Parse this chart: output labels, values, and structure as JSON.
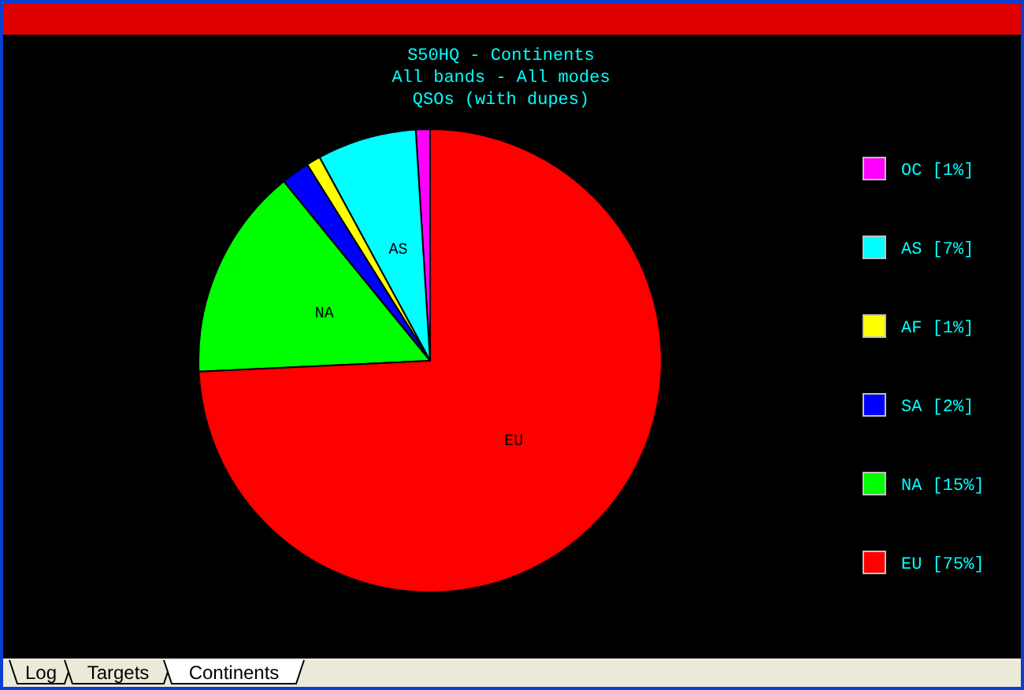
{
  "chart_data": {
    "type": "pie",
    "title": "S50HQ - Continents",
    "subtitle": "All bands - All modes\nQSOs (with dupes)",
    "categories": [
      "OC",
      "AS",
      "AF",
      "SA",
      "NA",
      "EU"
    ],
    "values": [
      1,
      7,
      1,
      2,
      15,
      75
    ],
    "value_labels": [
      "[1%]",
      "[7%]",
      "[1%]",
      "[2%]",
      "[15%]",
      "[75%]"
    ],
    "colors": [
      "#ff00ff",
      "#00ffff",
      "#ffff00",
      "#0000ff",
      "#00ff00",
      "#ff0000"
    ],
    "legend": "right",
    "annotations": [
      "Log",
      "Targets",
      "Continents"
    ]
  }
}
